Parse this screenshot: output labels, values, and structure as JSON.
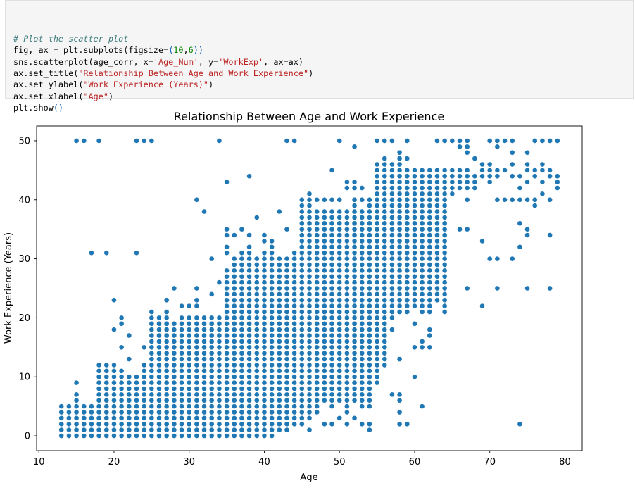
{
  "code": {
    "lines": [
      [
        {
          "t": "# Plot the scatter plot",
          "c": "tok-c"
        }
      ],
      [
        {
          "t": "fig, ax = plt.subplots(figsize=",
          "c": ""
        },
        {
          "t": "(",
          "c": "tok-p"
        },
        {
          "t": "10",
          "c": "tok-n"
        },
        {
          "t": ",",
          "c": ""
        },
        {
          "t": "6",
          "c": "tok-n"
        },
        {
          "t": "))",
          "c": "tok-p"
        }
      ],
      [
        {
          "t": "sns.scatterplot(age_corr, x=",
          "c": ""
        },
        {
          "t": "'Age_Num'",
          "c": "tok-s"
        },
        {
          "t": ", y=",
          "c": ""
        },
        {
          "t": "'WorkExp'",
          "c": "tok-s"
        },
        {
          "t": ", ax=ax)",
          "c": ""
        }
      ],
      [
        {
          "t": "ax.set_title(",
          "c": ""
        },
        {
          "t": "\"Relationship Between Age and Work Experience\"",
          "c": "tok-s"
        },
        {
          "t": ")",
          "c": ""
        }
      ],
      [
        {
          "t": "ax.set_ylabel(",
          "c": ""
        },
        {
          "t": "\"Work Experience (Years)\"",
          "c": "tok-s"
        },
        {
          "t": ")",
          "c": ""
        }
      ],
      [
        {
          "t": "ax.set_xlabel(",
          "c": ""
        },
        {
          "t": "\"Age\"",
          "c": "tok-s"
        },
        {
          "t": ")",
          "c": ""
        }
      ],
      [
        {
          "t": "plt.show",
          "c": ""
        },
        {
          "t": "()",
          "c": "tok-p"
        }
      ]
    ]
  },
  "chart_data": {
    "type": "scatter",
    "title": "Relationship Between Age and Work Experience",
    "xlabel": "Age",
    "ylabel": "Work Experience (Years)",
    "xlim": [
      9.7,
      82.3
    ],
    "ylim": [
      -2.5,
      52.5
    ],
    "xticks": [
      10,
      20,
      30,
      40,
      50,
      60,
      70,
      80
    ],
    "yticks": [
      0,
      10,
      20,
      30,
      40,
      50
    ],
    "grid": false,
    "marker_color": "#1f77b4",
    "columns": [
      {
        "x": 13,
        "y_ranges": [
          [
            0,
            5
          ]
        ]
      },
      {
        "x": 14,
        "y_ranges": [
          [
            0,
            5
          ]
        ]
      },
      {
        "x": 15,
        "y_ranges": [
          [
            0,
            7
          ]
        ],
        "y_points": [
          9,
          50
        ]
      },
      {
        "x": 16,
        "y_ranges": [
          [
            0,
            5
          ]
        ],
        "y_points": [
          50
        ]
      },
      {
        "x": 17,
        "y_ranges": [
          [
            0,
            5
          ]
        ],
        "y_points": [
          31
        ]
      },
      {
        "x": 18,
        "y_ranges": [
          [
            0,
            12
          ]
        ],
        "y_points": [
          50
        ]
      },
      {
        "x": 19,
        "y_ranges": [
          [
            0,
            12
          ]
        ],
        "y_points": [
          31
        ]
      },
      {
        "x": 20,
        "y_ranges": [
          [
            0,
            12
          ]
        ],
        "y_points": [
          18,
          23
        ]
      },
      {
        "x": 21,
        "y_ranges": [
          [
            0,
            11
          ]
        ],
        "y_points": [
          15,
          19,
          20
        ]
      },
      {
        "x": 22,
        "y_ranges": [
          [
            0,
            10
          ]
        ],
        "y_points": [
          13,
          17
        ]
      },
      {
        "x": 23,
        "y_ranges": [
          [
            0,
            10
          ]
        ],
        "y_points": [
          31,
          50
        ]
      },
      {
        "x": 24,
        "y_ranges": [
          [
            0,
            12
          ]
        ],
        "y_points": [
          15,
          50
        ]
      },
      {
        "x": 25,
        "y_ranges": [
          [
            0,
            21
          ]
        ],
        "y_points": [
          50
        ]
      },
      {
        "x": 26,
        "y_ranges": [
          [
            0,
            20
          ]
        ]
      },
      {
        "x": 27,
        "y_ranges": [
          [
            0,
            21
          ]
        ],
        "y_points": [
          23
        ]
      },
      {
        "x": 28,
        "y_ranges": [
          [
            0,
            19
          ]
        ],
        "y_points": [
          25
        ]
      },
      {
        "x": 29,
        "y_ranges": [
          [
            0,
            20
          ]
        ],
        "y_points": [
          22
        ]
      },
      {
        "x": 30,
        "y_ranges": [
          [
            0,
            20
          ]
        ],
        "y_points": [
          22
        ]
      },
      {
        "x": 31,
        "y_ranges": [
          [
            0,
            20
          ]
        ],
        "y_points": [
          22,
          23,
          25,
          40
        ]
      },
      {
        "x": 32,
        "y_ranges": [
          [
            0,
            20
          ]
        ],
        "y_points": [
          38
        ]
      },
      {
        "x": 33,
        "y_ranges": [
          [
            0,
            20
          ]
        ],
        "y_points": [
          24,
          30
        ]
      },
      {
        "x": 34,
        "y_ranges": [
          [
            0,
            20
          ]
        ],
        "y_points": [
          26,
          50
        ]
      },
      {
        "x": 35,
        "y_ranges": [
          [
            0,
            28
          ]
        ],
        "y_points": [
          31,
          32,
          34,
          35,
          43
        ]
      },
      {
        "x": 36,
        "y_ranges": [
          [
            0,
            30
          ]
        ],
        "y_points": [
          34
        ]
      },
      {
        "x": 37,
        "y_ranges": [
          [
            0,
            31
          ]
        ],
        "y_points": [
          35
        ]
      },
      {
        "x": 38,
        "y_ranges": [
          [
            0,
            32
          ]
        ],
        "y_points": [
          34,
          44
        ]
      },
      {
        "x": 39,
        "y_ranges": [
          [
            0,
            30
          ]
        ],
        "y_points": [
          37
        ]
      },
      {
        "x": 40,
        "y_ranges": [
          [
            0,
            31
          ]
        ],
        "y_points": [
          33,
          34
        ]
      },
      {
        "x": 41,
        "y_ranges": [
          [
            0,
            31
          ]
        ],
        "y_points": [
          32,
          33
        ]
      },
      {
        "x": 42,
        "y_ranges": [
          [
            1,
            30
          ]
        ],
        "y_points": [
          38
        ]
      },
      {
        "x": 43,
        "y_ranges": [
          [
            1,
            30
          ]
        ],
        "y_points": [
          35,
          50
        ]
      },
      {
        "x": 44,
        "y_ranges": [
          [
            2,
            31
          ]
        ],
        "y_points": [
          50
        ]
      },
      {
        "x": 45,
        "y_ranges": [
          [
            2,
            39
          ]
        ],
        "y_points": [
          40
        ]
      },
      {
        "x": 46,
        "y_ranges": [
          [
            3,
            40
          ]
        ],
        "y_points": [
          1,
          41
        ]
      },
      {
        "x": 47,
        "y_ranges": [
          [
            4,
            38
          ]
        ],
        "y_points": [
          40
        ]
      },
      {
        "x": 48,
        "y_ranges": [
          [
            6,
            38
          ]
        ],
        "y_points": [
          2,
          40
        ]
      },
      {
        "x": 49,
        "y_ranges": [
          [
            5,
            38
          ]
        ],
        "y_points": [
          2,
          40,
          45
        ]
      },
      {
        "x": 50,
        "y_ranges": [
          [
            6,
            38
          ]
        ],
        "y_points": [
          3,
          40,
          50
        ]
      },
      {
        "x": 51,
        "y_ranges": [
          [
            4,
            38
          ]
        ],
        "y_points": [
          2,
          42,
          43
        ]
      },
      {
        "x": 52,
        "y_ranges": [
          [
            6,
            40
          ]
        ],
        "y_points": [
          3,
          42,
          43,
          49
        ]
      },
      {
        "x": 53,
        "y_ranges": [
          [
            5,
            38
          ]
        ],
        "y_points": [
          2,
          40,
          42
        ]
      },
      {
        "x": 54,
        "y_ranges": [
          [
            5,
            40
          ]
        ],
        "y_points": [
          1,
          2
        ]
      },
      {
        "x": 55,
        "y_ranges": [
          [
            10,
            46
          ]
        ],
        "y_points": [
          9,
          50
        ]
      },
      {
        "x": 56,
        "y_ranges": [
          [
            12,
            46
          ]
        ],
        "y_points": [
          14,
          16,
          47,
          50
        ]
      },
      {
        "x": 57,
        "y_ranges": [
          [
            20,
            45
          ]
        ],
        "y_points": [
          7,
          18,
          46,
          50
        ]
      },
      {
        "x": 58,
        "y_ranges": [
          [
            21,
            47
          ]
        ],
        "y_points": [
          2,
          4,
          6,
          7,
          13,
          48
        ]
      },
      {
        "x": 59,
        "y_ranges": [
          [
            21,
            45
          ]
        ],
        "y_points": [
          2,
          47,
          50
        ]
      },
      {
        "x": 60,
        "y_ranges": [
          [
            22,
            45
          ]
        ],
        "y_points": [
          10,
          15,
          19
        ]
      },
      {
        "x": 61,
        "y_ranges": [
          [
            21,
            45
          ]
        ],
        "y_points": [
          5,
          15,
          16
        ]
      },
      {
        "x": 62,
        "y_ranges": [
          [
            21,
            45
          ]
        ],
        "y_points": [
          15,
          17,
          18
        ]
      },
      {
        "x": 63,
        "y_ranges": [
          [
            23,
            45
          ]
        ],
        "y_points": [
          50
        ]
      },
      {
        "x": 64,
        "y_ranges": [
          [
            21,
            45
          ]
        ],
        "y_points": [
          50
        ]
      },
      {
        "x": 65,
        "y_ranges": [
          [
            41,
            45
          ]
        ],
        "y_points": [
          50
        ]
      },
      {
        "x": 66,
        "y_ranges": [
          [
            42,
            45
          ]
        ],
        "y_points": [
          35,
          49,
          50
        ]
      },
      {
        "x": 67,
        "y_ranges": [
          [
            42,
            45
          ]
        ],
        "y_points": [
          25,
          35,
          40,
          48,
          49,
          50
        ]
      },
      {
        "x": 68,
        "y_ranges": [
          [
            42,
            44
          ]
        ],
        "y_points": [
          47
        ]
      },
      {
        "x": 69,
        "y_ranges": [
          [
            44,
            46
          ]
        ],
        "y_points": [
          22,
          33
        ]
      },
      {
        "x": 70,
        "y_ranges": [
          [
            43,
            45
          ]
        ],
        "y_points": [
          30,
          46,
          50
        ]
      },
      {
        "x": 71,
        "y_ranges": [
          [
            44,
            45
          ]
        ],
        "y_points": [
          25,
          30,
          40,
          49,
          50
        ]
      },
      {
        "x": 72,
        "y_ranges": [
          [
            40,
            40
          ]
        ],
        "y_points": [
          45,
          50
        ]
      },
      {
        "x": 73,
        "y_ranges": [
          [
            40,
            40
          ]
        ],
        "y_points": [
          30,
          44,
          46,
          48,
          50
        ]
      },
      {
        "x": 74,
        "y_ranges": [
          [
            40,
            40
          ]
        ],
        "y_points": [
          2,
          32,
          36,
          42,
          44
        ]
      },
      {
        "x": 75,
        "y_ranges": [
          [
            40,
            40
          ]
        ],
        "y_points": [
          25,
          34,
          35,
          43,
          45,
          46,
          48
        ]
      },
      {
        "x": 76,
        "y_ranges": [
          [
            39,
            40
          ]
        ],
        "y_points": [
          44,
          45,
          50
        ]
      },
      {
        "x": 77,
        "y_ranges": [
          [
            41,
            41
          ]
        ],
        "y_points": [
          43,
          45,
          46,
          50
        ]
      },
      {
        "x": 78,
        "y_ranges": [
          [
            40,
            40
          ]
        ],
        "y_points": [
          25,
          34,
          44,
          45,
          50
        ]
      },
      {
        "x": 79,
        "y_ranges": [
          [
            42,
            44
          ]
        ],
        "y_points": [
          50
        ]
      }
    ]
  }
}
